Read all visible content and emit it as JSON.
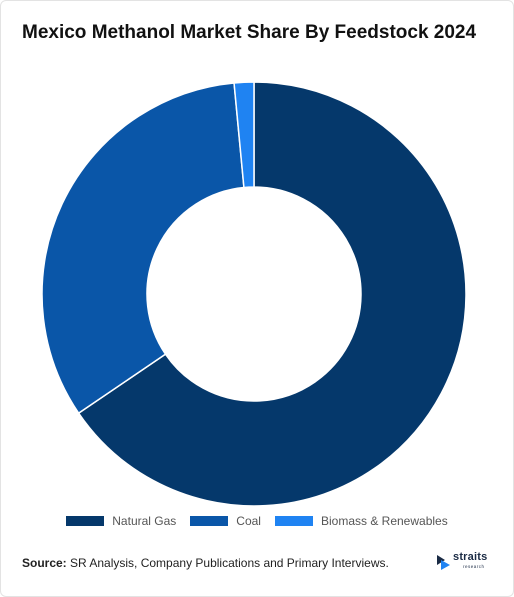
{
  "chart_data": {
    "type": "pie",
    "title": "Mexico Methanol Market Share By Feedstock 2024",
    "donut": true,
    "categories": [
      "Natural Gas",
      "Coal",
      "Biomass & Renewables"
    ],
    "values": [
      65.5,
      33.0,
      1.5
    ],
    "colors": [
      "#05386b",
      "#0a56a8",
      "#1f83f2"
    ],
    "legend_position": "bottom"
  },
  "source": {
    "label": "Source:",
    "text": " SR Analysis, Company Publications and Primary Interviews."
  },
  "logo": {
    "name": "straits",
    "sub": "research",
    "icon": "straits-logo-icon"
  }
}
